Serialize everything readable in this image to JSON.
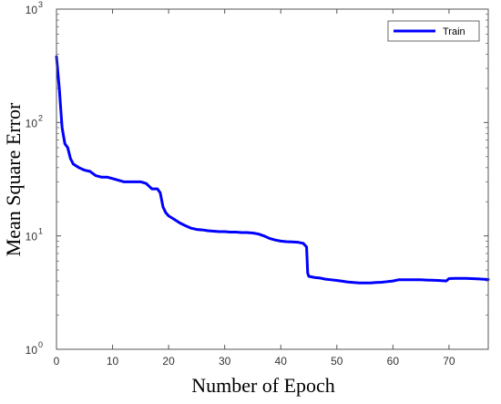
{
  "chart_data": {
    "type": "line",
    "title": "",
    "xlabel": "Number of Epoch",
    "ylabel": "Mean Square Error",
    "xlim": [
      0,
      77
    ],
    "ylim": [
      1,
      1000
    ],
    "yscale": "log",
    "xticks": [
      0,
      10,
      20,
      30,
      40,
      50,
      60,
      70
    ],
    "yticks": [
      {
        "value": 1,
        "base": "10",
        "exp": "0"
      },
      {
        "value": 10,
        "base": "10",
        "exp": "1"
      },
      {
        "value": 100,
        "base": "10",
        "exp": "2"
      },
      {
        "value": 1000,
        "base": "10",
        "exp": "3"
      }
    ],
    "grid": false,
    "legend_position": "top-right",
    "series": [
      {
        "name": "Train",
        "color": "#0000ff",
        "x": [
          0,
          0.5,
          1,
          1.5,
          2,
          2.5,
          3,
          4,
          5,
          6,
          7,
          8,
          9,
          10,
          11,
          12,
          13,
          14,
          15,
          16,
          17,
          18,
          18.5,
          19,
          19.5,
          20,
          21,
          22,
          23,
          24,
          25,
          26,
          27,
          28,
          29,
          30,
          31,
          32,
          33,
          34,
          35,
          36,
          37,
          38,
          39,
          40,
          41,
          42,
          43,
          44,
          44.6,
          44.8,
          45,
          45.5,
          46,
          47,
          48,
          49,
          50,
          51,
          52,
          53,
          54,
          55,
          56,
          57,
          58,
          59,
          60,
          61,
          62,
          63,
          64,
          65,
          66,
          67,
          68,
          69,
          69.5,
          70,
          71,
          72,
          73,
          74,
          75,
          76,
          77
        ],
        "y": [
          380,
          200,
          90,
          65,
          60,
          48,
          43,
          40,
          38,
          37,
          34,
          33,
          33,
          32,
          31,
          30,
          30,
          30,
          30,
          29,
          26,
          26,
          24,
          18,
          16,
          15,
          14,
          13,
          12.3,
          11.7,
          11.4,
          11.3,
          11.1,
          11.0,
          10.9,
          10.9,
          10.8,
          10.8,
          10.7,
          10.7,
          10.6,
          10.4,
          10.0,
          9.5,
          9.2,
          9.0,
          8.9,
          8.85,
          8.8,
          8.6,
          8.0,
          4.7,
          4.4,
          4.35,
          4.3,
          4.25,
          4.15,
          4.1,
          4.05,
          3.98,
          3.92,
          3.88,
          3.85,
          3.85,
          3.85,
          3.88,
          3.9,
          3.95,
          4.0,
          4.1,
          4.1,
          4.1,
          4.1,
          4.1,
          4.08,
          4.07,
          4.05,
          4.02,
          4.0,
          4.2,
          4.22,
          4.22,
          4.22,
          4.2,
          4.18,
          4.15,
          4.12
        ]
      }
    ]
  }
}
